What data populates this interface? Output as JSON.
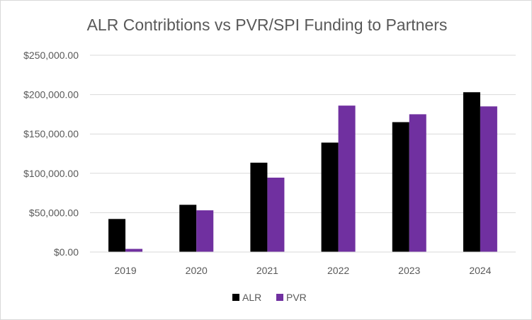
{
  "chart_data": {
    "type": "bar",
    "title": "ALR Contribtions  vs PVR/SPI Funding to Partners",
    "xlabel": "",
    "ylabel": "",
    "categories": [
      "2019",
      "2020",
      "2021",
      "2022",
      "2023",
      "2024"
    ],
    "series": [
      {
        "name": "ALR",
        "color": "#000000",
        "values": [
          42000,
          60000,
          113500,
          139000,
          165000,
          203000
        ]
      },
      {
        "name": "PVR",
        "color": "#7030a0",
        "values": [
          4000,
          53000,
          94500,
          186000,
          175000,
          185000
        ]
      }
    ],
    "ylim": [
      0,
      250000
    ],
    "yticks": [
      0,
      50000,
      100000,
      150000,
      200000,
      250000
    ],
    "ytick_labels": [
      "$0.00",
      "$50,000.00",
      "$100,000.00",
      "$150,000.00",
      "$200,000.00",
      "$250,000.00"
    ],
    "grid": true,
    "legend_position": "bottom"
  }
}
